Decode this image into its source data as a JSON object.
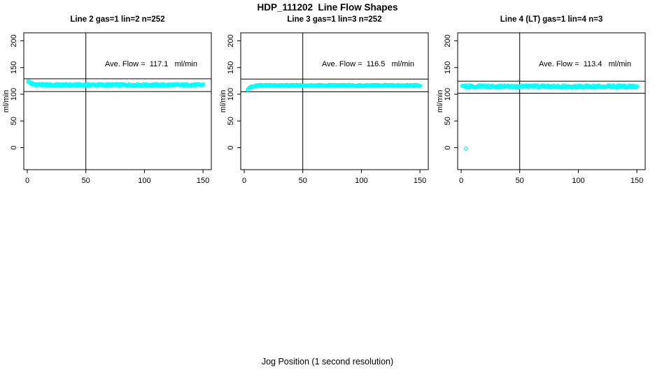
{
  "chart_data": {
    "type": "scatter",
    "title": "HDP_111202  Line Flow Shapes",
    "xlabel": "Jog Position (1 second resolution)",
    "ylabel": "ml/min",
    "x_ticks": [
      0,
      50,
      100,
      150
    ],
    "y_ticks": [
      0,
      50,
      100,
      150,
      200
    ],
    "xlim": [
      -3,
      157
    ],
    "ylim": [
      -41,
      215
    ],
    "grid": false,
    "point_color": "#00ffff",
    "axis_color": "#000000",
    "marker": "open-circle",
    "panels": [
      {
        "title": "Line 2 gas=1 lin=2 n=252",
        "annotation": "Ave. Flow =  117.1   ml/min",
        "ave_flow": 117.1,
        "n": 252,
        "ylabel": "ml/min",
        "vline_x": 50,
        "ref_line_upper": 129,
        "ref_line_lower": 105,
        "series": {
          "name": "flow",
          "x_start": 1,
          "x_end": 150,
          "count": 230,
          "jitter": 1.5,
          "profile": [
            [
              1,
              125
            ],
            [
              2,
              122
            ],
            [
              3,
              120.5
            ],
            [
              5,
              119
            ],
            [
              8,
              118.2
            ],
            [
              15,
              117.6
            ],
            [
              30,
              117.4
            ],
            [
              60,
              117.6
            ],
            [
              100,
              117.4
            ],
            [
              150,
              117.5
            ]
          ],
          "outliers": []
        }
      },
      {
        "title": "Line 3 gas=1 lin=3 n=252",
        "annotation": "Ave. Flow =  116.5   ml/min",
        "ave_flow": 116.5,
        "n": 252,
        "ylabel": "ml/min",
        "vline_x": 50,
        "ref_line_upper": 128.5,
        "ref_line_lower": 104.5,
        "series": {
          "name": "flow",
          "x_start": 3,
          "x_end": 150,
          "count": 230,
          "jitter": 1.0,
          "profile": [
            [
              3,
              108
            ],
            [
              4,
              111.5
            ],
            [
              6,
              114.2
            ],
            [
              9,
              115.8
            ],
            [
              15,
              116.4
            ],
            [
              40,
              116.5
            ],
            [
              150,
              116.5
            ]
          ],
          "outliers": []
        }
      },
      {
        "title": "Line 4 (LT) gas=1 lin=4 n=3",
        "annotation": "Ave. Flow =  113.4   ml/min",
        "ave_flow": 113.4,
        "n": 3,
        "ylabel": "ml/min",
        "vline_x": 50,
        "ref_line_upper": 124.5,
        "ref_line_lower": 102,
        "series": {
          "name": "flow",
          "x_start": 1,
          "x_end": 150,
          "count": 200,
          "jitter": 2.2,
          "profile": [
            [
              1,
              114.5
            ],
            [
              150,
              114.5
            ]
          ],
          "outliers": [
            [
              4,
              -2
            ]
          ]
        }
      }
    ]
  }
}
